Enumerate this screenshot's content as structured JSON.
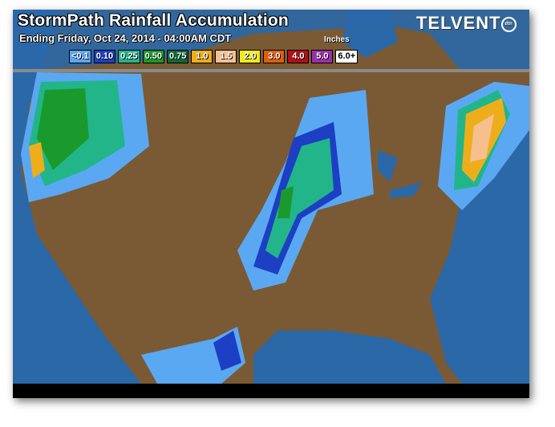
{
  "header": {
    "title": "StormPath Rainfall Accumulation",
    "subtitle": "Ending Friday, Oct 24, 2014 - 04:00AM CDT",
    "units": "Inches",
    "brand": "TELVENT",
    "brand_badge": "dtn"
  },
  "legend": [
    {
      "label": "<0.1",
      "color": "#5aa8f2"
    },
    {
      "label": "0.10",
      "color": "#1c3fc4"
    },
    {
      "label": "0.25",
      "color": "#22b58a"
    },
    {
      "label": "0.50",
      "color": "#1a9a2c"
    },
    {
      "label": "0.75",
      "color": "#0d6a3a"
    },
    {
      "label": "1.0",
      "color": "#eeae1c"
    },
    {
      "label": "1.5",
      "color": "#f6c08e"
    },
    {
      "label": "2.0",
      "color": "#f0ea1c"
    },
    {
      "label": "3.0",
      "color": "#de5e10"
    },
    {
      "label": "4.0",
      "color": "#b0101a"
    },
    {
      "label": "5.0",
      "color": "#9c2eb0"
    },
    {
      "label": "6.0+",
      "color": "#ffffff"
    }
  ],
  "colors": {
    "land": "#7a5a34",
    "water": "#2a68a8"
  }
}
